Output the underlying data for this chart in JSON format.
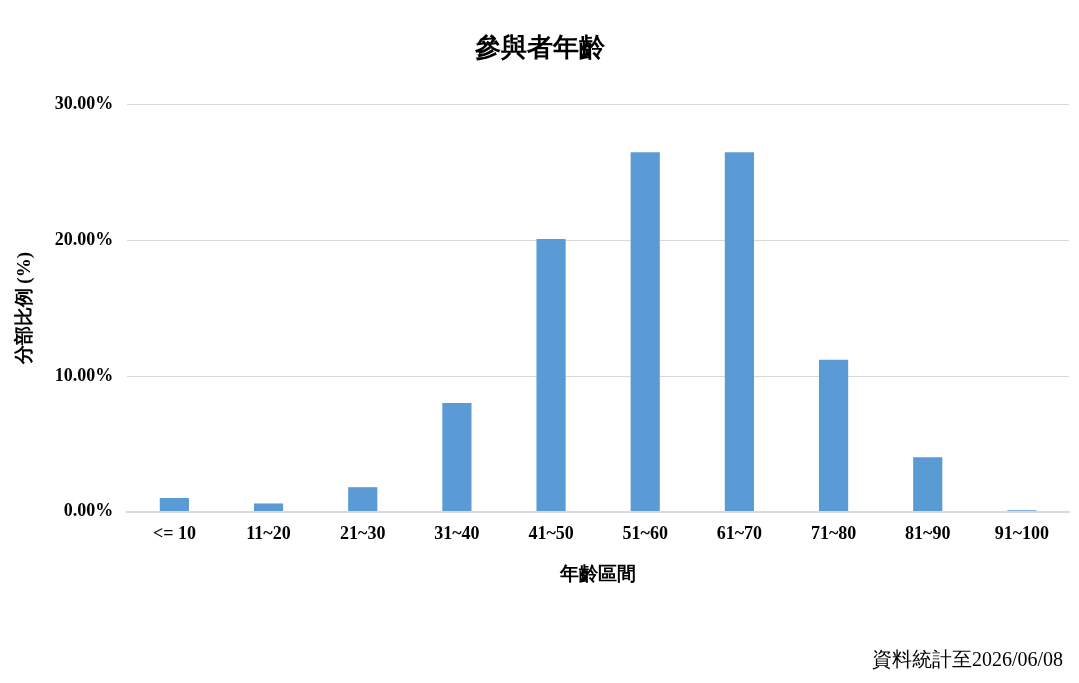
{
  "chart_data": {
    "type": "bar",
    "title": "參與者年齡",
    "xlabel": "年齡區間",
    "ylabel": "分部比例 (%)",
    "categories": [
      "<= 10",
      "11~20",
      "21~30",
      "31~40",
      "41~50",
      "51~60",
      "61~70",
      "71~80",
      "81~90",
      "91~100"
    ],
    "values": [
      1.0,
      0.6,
      1.8,
      8.0,
      20.1,
      26.5,
      26.5,
      11.2,
      4.0,
      0.1
    ],
    "color": "#5b9bd5",
    "ylim": [
      0,
      30
    ],
    "yticks": [
      {
        "value": 0,
        "label": "0.00%"
      },
      {
        "value": 10,
        "label": "10.00%"
      },
      {
        "value": 20,
        "label": "20.00%"
      },
      {
        "value": 30,
        "label": "30.00%"
      }
    ],
    "grid": "y",
    "legend": false,
    "annotations": [
      "資料統計至2026/06/08"
    ]
  }
}
